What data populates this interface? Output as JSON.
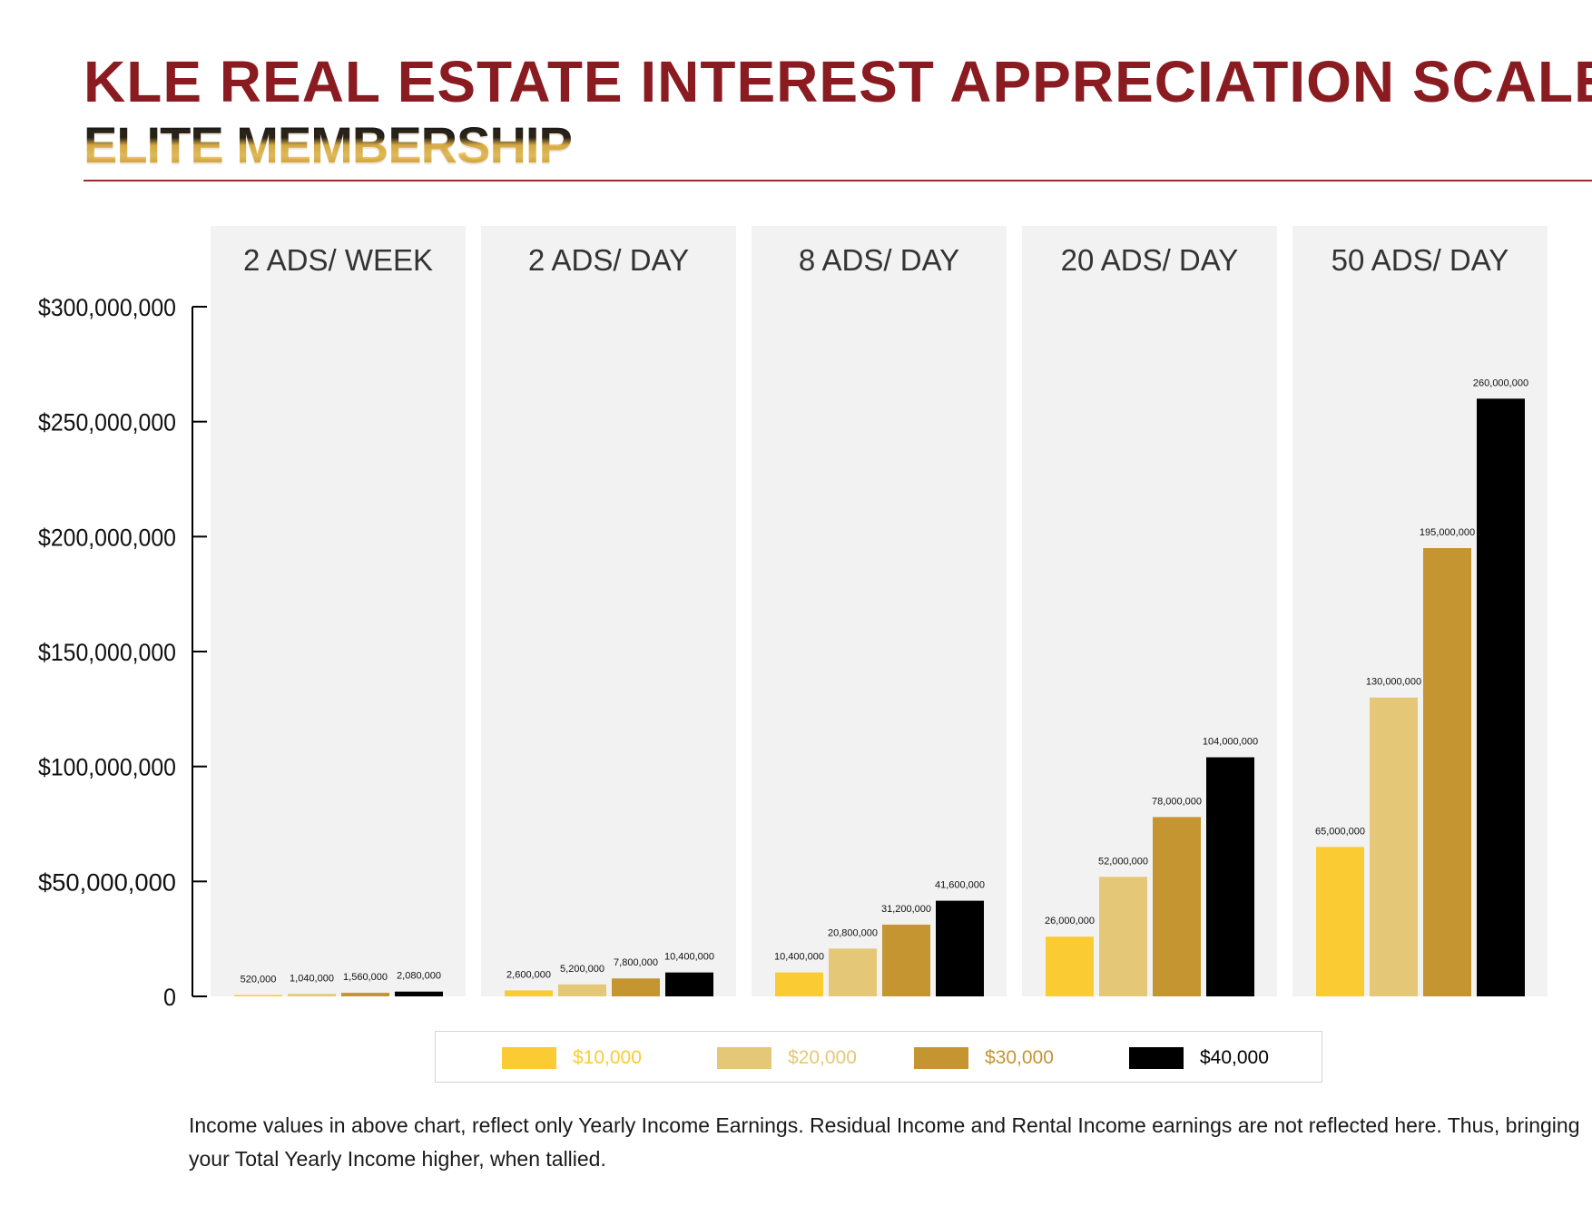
{
  "header": {
    "title": "KLE REAL ESTATE INTEREST APPRECIATION SCALE",
    "subtitle": "ELITE MEMBERSHIP"
  },
  "chart_data": {
    "type": "bar",
    "categories": [
      "2 ADS/ WEEK",
      "2 ADS/ DAY",
      "8 ADS/ DAY",
      "20 ADS/ DAY",
      "50 ADS/ DAY"
    ],
    "series": [
      {
        "name": "$10,000",
        "color": "#fbcb33",
        "values": [
          520000,
          2600000,
          10400000,
          26000000,
          65000000
        ],
        "labels": [
          "520,000",
          "2,600,000",
          "10,400,000",
          "26,000,000",
          "65,000,000"
        ]
      },
      {
        "name": "$20,000",
        "color": "#e4c878",
        "values": [
          1040000,
          5200000,
          20800000,
          52000000,
          130000000
        ],
        "labels": [
          "1,040,000",
          "5,200,000",
          "20,800,000",
          "52,000,000",
          "130,000,000"
        ]
      },
      {
        "name": "$30,000",
        "color": "#c49530",
        "values": [
          1560000,
          7800000,
          31200000,
          78000000,
          195000000
        ],
        "labels": [
          "1,560,000",
          "7,800,000",
          "31,200,000",
          "78,000,000",
          "195,000,000"
        ]
      },
      {
        "name": "$40,000",
        "color": "#000000",
        "values": [
          2080000,
          10400000,
          41600000,
          104000000,
          260000000
        ],
        "labels": [
          "2,080,000",
          "10,400,000",
          "41,600,000",
          "104,000,000",
          "260,000,000"
        ]
      }
    ],
    "yticks": [
      0,
      50000000,
      100000000,
      150000000,
      200000000,
      250000000,
      300000000
    ],
    "ytick_labels": [
      "0",
      "$50,000,000",
      "$100,000,000",
      "$150,000,000",
      "$200,000,000",
      "$250,000,000",
      "$300,000,000"
    ],
    "ylim": [
      0,
      300000000
    ],
    "legend_position": "bottom",
    "panel_background": "#f2f2f2"
  },
  "footnote": "Income values in above chart, reflect only Yearly Income Earnings. Residual Income and Rental Income earnings are not reflected here. Thus, bringing your Total Yearly Income higher, when tallied."
}
